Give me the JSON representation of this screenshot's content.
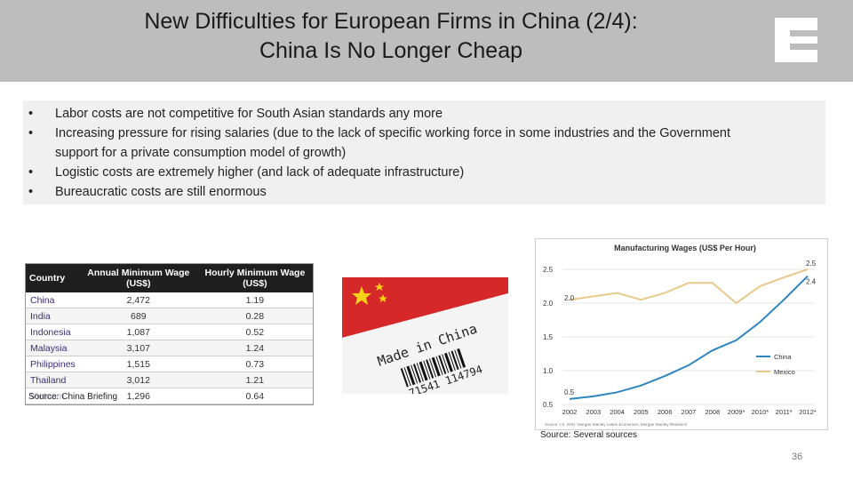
{
  "slide": {
    "title_line1": "New Difficulties for European Firms in China (2/4):",
    "title_line2": "China Is No Longer Cheap",
    "logo_letter": "E",
    "bullets": [
      "Labor costs are not competitive for South Asian standards any more",
      "Increasing pressure for rising salaries (due to the lack of specific working force in some industries and the Government support for a private consumption model of growth)",
      "Logistic costs are extremely higher (and lack of adequate infrastructure)",
      "Bureaucratic costs are still enormous"
    ],
    "page_number": "36"
  },
  "wage_table": {
    "headers": [
      "Country",
      "Annual Minimum Wage (US$)",
      "Hourly Minimum Wage (US$)"
    ],
    "rows": [
      [
        "China",
        "2,472",
        "1.19"
      ],
      [
        "India",
        "689",
        "0.28"
      ],
      [
        "Indonesia",
        "1,087",
        "0.52"
      ],
      [
        "Malaysia",
        "3,107",
        "1.24"
      ],
      [
        "Philippines",
        "1,515",
        "0.73"
      ],
      [
        "Thailand",
        "3,012",
        "1.21"
      ],
      [
        "Vietnam",
        "1,296",
        "0.64"
      ]
    ],
    "source": "Source: China Briefing"
  },
  "photo": {
    "stamp_text": "Made in China",
    "barcode_digits": "71541 114794"
  },
  "chart_source": "Source: Several sources",
  "colors": {
    "header_bg": "#bdbdbd",
    "china_line": "#2e86c1",
    "mexico_line": "#e8c98a",
    "flag_red": "#d62828",
    "flag_star": "#f7d117"
  },
  "chart_data": {
    "type": "line",
    "title": "Manufacturing Wages (US$ Per Hour)",
    "categories": [
      "2002",
      "2003",
      "2004",
      "2005",
      "2006",
      "2007",
      "2008",
      "2009*",
      "2010*",
      "2011*",
      "2012*"
    ],
    "series": [
      {
        "name": "China",
        "values": [
          0.58,
          0.62,
          0.68,
          0.78,
          0.92,
          1.08,
          1.3,
          1.45,
          1.72,
          2.05,
          2.4
        ]
      },
      {
        "name": "Mexico",
        "values": [
          2.05,
          2.1,
          2.15,
          2.05,
          2.15,
          2.3,
          2.3,
          2.0,
          2.25,
          2.38,
          2.5
        ]
      }
    ],
    "ylim": [
      0.5,
      2.5
    ],
    "yticks": [
      "0.5",
      "1.0",
      "1.5",
      "2.0",
      "2.5"
    ],
    "value_labels": [
      "2.0",
      "0.5",
      "2.5",
      "2.4"
    ],
    "footnote": "Source: I.S. SHG: Morgan Stanley Latam Economics, Morgan Stanley Research"
  }
}
